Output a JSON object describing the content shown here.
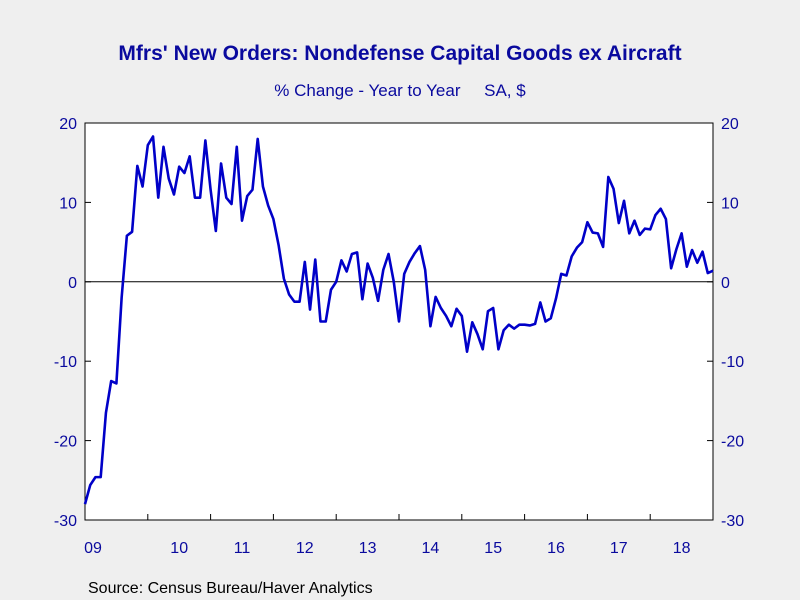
{
  "chart_data": {
    "type": "line",
    "title": "Mfrs' New Orders: Nondefense Capital Goods ex Aircraft",
    "subtitle": "% Change - Year to Year     SA, $",
    "source": "Source:  Census Bureau/Haver Analytics",
    "ylim": [
      -30,
      20
    ],
    "yticks_left": [
      "20",
      "10",
      "0",
      "-10",
      "-20",
      "-30"
    ],
    "yticks_right": [
      "20",
      "10",
      "0",
      "-10",
      "-20",
      "-30"
    ],
    "yticks_values": [
      20,
      10,
      0,
      -10,
      -20,
      -30
    ],
    "x_start_year": 2009,
    "x_labels": [
      "09",
      "10",
      "11",
      "12",
      "13",
      "14",
      "15",
      "16",
      "17",
      "18"
    ],
    "zero_line": true,
    "line_color": "#0000c8",
    "series": [
      {
        "values": [
          -28,
          -25.6,
          -24.6,
          -24.6,
          -16.5,
          -12.5,
          -12.8,
          -2,
          5.8,
          6.3,
          14.6,
          12,
          17.2,
          18.3,
          10.6,
          17,
          13,
          11,
          14.5,
          13.7,
          15.8,
          10.6,
          10.6,
          17.8,
          11.6,
          6.4,
          14.9,
          10.6,
          9.8,
          17,
          7.7,
          10.8,
          11.6,
          18,
          12,
          9.6,
          7.9,
          4.6,
          0.4,
          -1.6,
          -2.5,
          -2.5,
          2.5,
          -3.5,
          2.8,
          -5,
          -5,
          -1,
          0,
          2.7,
          1.3,
          3.5,
          3.7,
          -2.2,
          2.3,
          0.5,
          -2.4,
          1.5,
          3.5,
          0,
          -5,
          1,
          2.5,
          3.6,
          4.5,
          1.5,
          -5.6,
          -1.9,
          -3.3,
          -4.3,
          -5.6,
          -3.4,
          -4.3,
          -8.8,
          -5.1,
          -6.6,
          -8.5,
          -3.7,
          -3.3,
          -8.5,
          -6.1,
          -5.4,
          -5.9,
          -5.4,
          -5.4,
          -5.5,
          -5.3,
          -2.6,
          -5,
          -4.6,
          -2.1,
          1,
          0.8,
          3.2,
          4.3,
          5,
          7.5,
          6.2,
          6.1,
          4.4,
          13.2,
          11.7,
          7.4,
          10.2,
          6.1,
          7.7,
          5.9,
          6.7,
          6.6,
          8.4,
          9.2,
          7.9,
          1.7,
          4.1,
          6.1,
          1.9,
          4,
          2.4,
          3.8,
          1.1,
          1.4
        ]
      }
    ]
  }
}
